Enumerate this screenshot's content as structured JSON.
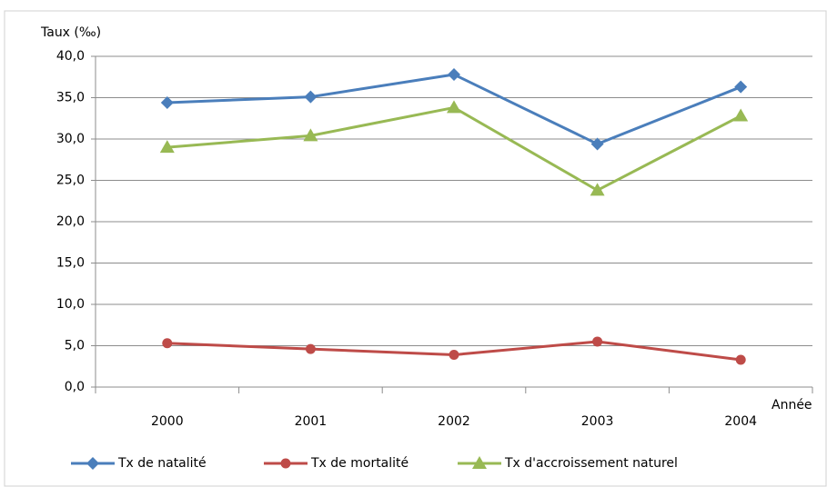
{
  "chart_data": {
    "type": "line",
    "y_label": "Taux (‰)",
    "x_label": "Année",
    "categories": [
      "2000",
      "2001",
      "2002",
      "2003",
      "2004"
    ],
    "series": [
      {
        "name": "Tx de natalité",
        "color": "#4a7ebb",
        "marker": "diamond",
        "values": [
          34.4,
          35.1,
          37.8,
          29.4,
          36.3
        ]
      },
      {
        "name": "Tx de mortalité",
        "color": "#be4b48",
        "marker": "circle",
        "values": [
          5.3,
          4.6,
          3.9,
          5.5,
          3.3
        ]
      },
      {
        "name": "Tx d'accroissement naturel",
        "color": "#98b954",
        "marker": "triangle",
        "values": [
          29.0,
          30.4,
          33.8,
          23.8,
          32.8
        ]
      }
    ],
    "ylim": [
      0,
      40
    ],
    "yticks": [
      {
        "value": 0,
        "label": "0,0"
      },
      {
        "value": 5,
        "label": "5,0"
      },
      {
        "value": 10,
        "label": "10,0"
      },
      {
        "value": 15,
        "label": "15,0"
      },
      {
        "value": 20,
        "label": "20,0"
      },
      {
        "value": 25,
        "label": "25,0"
      },
      {
        "value": 30,
        "label": "30,0"
      },
      {
        "value": 35,
        "label": "35,0"
      },
      {
        "value": 40,
        "label": "40,0"
      }
    ],
    "grid": true,
    "legend": "bottom"
  }
}
